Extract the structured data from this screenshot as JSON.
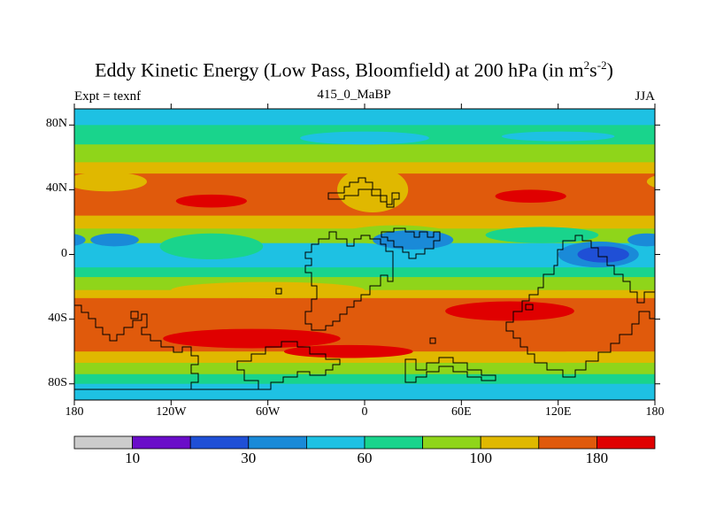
{
  "chart_data": {
    "type": "heatmap",
    "title": "Eddy Kinetic Energy (Low Pass, Bloomfield) at 200 hPa (in m",
    "title_units": {
      "sup1": "2",
      "mid": "s",
      "sup2": "-2",
      "end": ")"
    },
    "subtitle_left": "Expt = texnf",
    "subtitle_center": "415_0_MaBP",
    "subtitle_right": "JJA",
    "xlim": [
      -180,
      180
    ],
    "ylim": [
      -90,
      90
    ],
    "x_ticks": [
      {
        "value": -180,
        "label": "180"
      },
      {
        "value": -120,
        "label": "120W"
      },
      {
        "value": -60,
        "label": "60W"
      },
      {
        "value": 0,
        "label": "0"
      },
      {
        "value": 60,
        "label": "60E"
      },
      {
        "value": 120,
        "label": "120E"
      },
      {
        "value": 180,
        "label": "180"
      }
    ],
    "y_ticks": [
      {
        "value": 80,
        "label": "80N"
      },
      {
        "value": 40,
        "label": "40N"
      },
      {
        "value": 0,
        "label": "0"
      },
      {
        "value": -40,
        "label": "40S"
      },
      {
        "value": -80,
        "label": "80S"
      }
    ],
    "colorbar": {
      "colors": [
        "#cccccc",
        "#6a0dc9",
        "#1f4fd6",
        "#1a8ad8",
        "#1ec1e3",
        "#19d48c",
        "#8fd51a",
        "#e0b800",
        "#e05a0c",
        "#e00000"
      ],
      "labels": [
        {
          "index": 1,
          "label": "10"
        },
        {
          "index": 3,
          "label": "30"
        },
        {
          "index": 5,
          "label": "60"
        },
        {
          "index": 7,
          "label": "100"
        },
        {
          "index": 9,
          "label": "180"
        }
      ]
    },
    "zonal_bands": [
      {
        "lat_from": 90,
        "lat_to": 80,
        "level": 4
      },
      {
        "lat_from": 80,
        "lat_to": 68,
        "level": 5
      },
      {
        "lat_from": 68,
        "lat_to": 57,
        "level": 6
      },
      {
        "lat_from": 57,
        "lat_to": 50,
        "level": 7
      },
      {
        "lat_from": 50,
        "lat_to": 24,
        "level": 8
      },
      {
        "lat_from": 24,
        "lat_to": 16,
        "level": 7
      },
      {
        "lat_from": 16,
        "lat_to": 7,
        "level": 6
      },
      {
        "lat_from": 7,
        "lat_to": -8,
        "level": 4
      },
      {
        "lat_from": -8,
        "lat_to": -14,
        "level": 5
      },
      {
        "lat_from": -14,
        "lat_to": -22,
        "level": 6
      },
      {
        "lat_from": -22,
        "lat_to": -27,
        "level": 7
      },
      {
        "lat_from": -27,
        "lat_to": -60,
        "level": 8
      },
      {
        "lat_from": -60,
        "lat_to": -67,
        "level": 7
      },
      {
        "lat_from": -67,
        "lat_to": -74,
        "level": 6
      },
      {
        "lat_from": -74,
        "lat_to": -80,
        "level": 5
      },
      {
        "lat_from": -80,
        "lat_to": -90,
        "level": 4
      }
    ],
    "blobs": [
      {
        "lon": 0,
        "lat": 72,
        "rlon": 40,
        "rlat": 4,
        "level": 4
      },
      {
        "lon": 120,
        "lat": 73,
        "rlon": 35,
        "rlat": 3,
        "level": 4
      },
      {
        "lon": -160,
        "lat": 45,
        "rlon": 25,
        "rlat": 6,
        "level": 7
      },
      {
        "lon": 5,
        "lat": 40,
        "rlon": 22,
        "rlat": 14,
        "level": 7
      },
      {
        "lon": -95,
        "lat": 33,
        "rlon": 22,
        "rlat": 4,
        "level": 9
      },
      {
        "lon": 103,
        "lat": 36,
        "rlon": 22,
        "rlat": 4,
        "level": 9
      },
      {
        "lon": 20,
        "lat": 12,
        "rlon": 35,
        "rlat": 6,
        "level": 6
      },
      {
        "lon": -95,
        "lat": 5,
        "rlon": 32,
        "rlat": 8,
        "level": 5
      },
      {
        "lon": 110,
        "lat": 12,
        "rlon": 35,
        "rlat": 5,
        "level": 5
      },
      {
        "lon": 30,
        "lat": 9,
        "rlon": 25,
        "rlat": 6,
        "level": 3
      },
      {
        "lon": 145,
        "lat": 0,
        "rlon": 25,
        "rlat": 8,
        "level": 3
      },
      {
        "lon": 148,
        "lat": 0,
        "rlon": 16,
        "rlat": 5,
        "level": 2
      },
      {
        "lon": -155,
        "lat": 9,
        "rlon": 15,
        "rlat": 4,
        "level": 3
      },
      {
        "lon": 175,
        "lat": 9,
        "rlon": 12,
        "rlat": 4,
        "level": 3
      },
      {
        "lon": -60,
        "lat": -22,
        "rlon": 60,
        "rlat": 5,
        "level": 7
      },
      {
        "lon": -70,
        "lat": -52,
        "rlon": 55,
        "rlat": 6,
        "level": 9
      },
      {
        "lon": 90,
        "lat": -35,
        "rlon": 40,
        "rlat": 6,
        "level": 9
      },
      {
        "lon": -10,
        "lat": -60,
        "rlon": 40,
        "rlat": 4,
        "level": 9
      },
      {
        "lon": 120,
        "lat": -55,
        "rlon": 30,
        "rlat": 5,
        "level": 8
      }
    ],
    "annotations": "black continent outlines (land-mask contour)"
  }
}
